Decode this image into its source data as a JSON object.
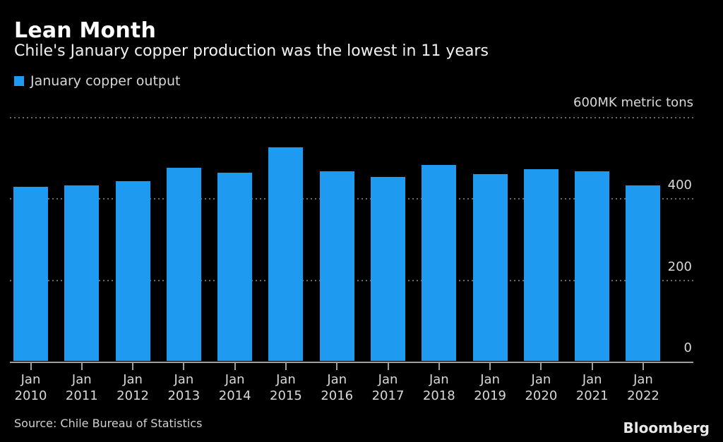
{
  "header": {
    "title": "Lean Month",
    "subtitle": "Chile's January copper production was the lowest in 11 years"
  },
  "legend": {
    "label": "January copper output",
    "swatch_color": "#1e9bf0"
  },
  "chart_data": {
    "type": "bar",
    "title": "Lean Month",
    "subtitle": "Chile's January copper production was the lowest in 11 years",
    "categories": [
      "Jan 2010",
      "Jan 2011",
      "Jan 2012",
      "Jan 2013",
      "Jan 2014",
      "Jan 2015",
      "Jan 2016",
      "Jan 2017",
      "Jan 2018",
      "Jan 2019",
      "Jan 2020",
      "Jan 2021",
      "Jan 2022"
    ],
    "values": [
      428,
      431,
      442,
      474,
      462,
      525,
      466,
      452,
      481,
      459,
      471,
      466,
      431
    ],
    "series_name": "January copper output",
    "xlabel": "",
    "ylabel": "K metric tons",
    "ylim": [
      0,
      600
    ],
    "yticks": [
      0,
      200,
      400,
      600
    ],
    "ytick_labels": [
      "0",
      "200",
      "400",
      "600MK metric tons"
    ],
    "top_axis_label": "600MK metric tons",
    "grid": "horizontal-dotted",
    "legend_position": "top-left",
    "bar_color": "#1e9bf0"
  },
  "footer": {
    "source": "Source: Chile Bureau of Statistics",
    "brand": "Bloomberg"
  },
  "colors": {
    "background": "#000000",
    "title": "#ffffff",
    "subtitle": "#f2f2f2",
    "bar": "#1e9bf0",
    "grid": "#6a6a6a",
    "axis": "#9e9e9e",
    "tick_label": "#d8d8d8",
    "source_text": "#d0d0d0",
    "brand_text": "#e9e9e9"
  }
}
